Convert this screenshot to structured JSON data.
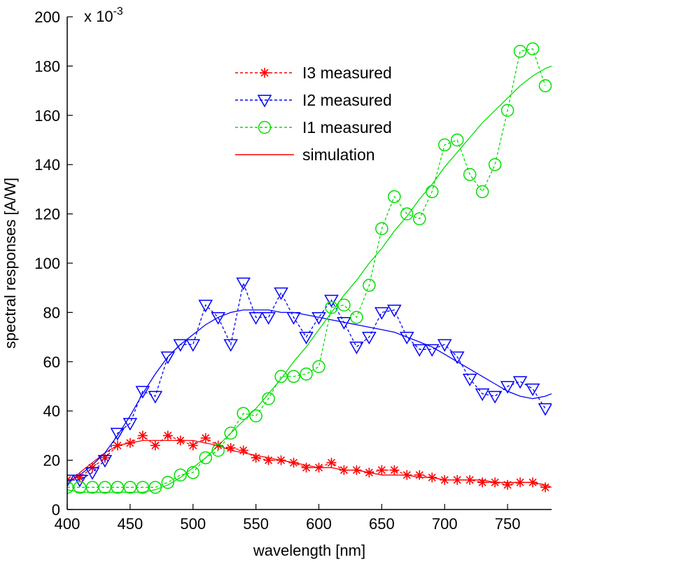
{
  "chart_data": {
    "type": "line",
    "title": "",
    "xlabel": "wavelength [nm]",
    "ylabel": "spectral responses [A/W]",
    "y_multiplier": "x 10",
    "y_multiplier_exp": "-3",
    "xlim": [
      400,
      785
    ],
    "ylim": [
      0,
      200
    ],
    "xticks": [
      400,
      450,
      500,
      550,
      600,
      650,
      700,
      750
    ],
    "yticks": [
      0,
      20,
      40,
      60,
      80,
      100,
      120,
      140,
      160,
      180,
      200
    ],
    "grid": false,
    "legend_position": "top-center",
    "legend": [
      {
        "label": "I3 measured",
        "color": "#ff0000",
        "marker": "star",
        "dash": true
      },
      {
        "label": "I2 measured",
        "color": "#0000ff",
        "marker": "triangle-down",
        "dash": true
      },
      {
        "label": "I1 measured",
        "color": "#00e000",
        "marker": "circle",
        "dash": true
      },
      {
        "label": "simulation",
        "color": "#ff0000",
        "marker": "none",
        "dash": false
      }
    ],
    "series": [
      {
        "name": "I3 measured",
        "color": "#ff0000",
        "marker": "star",
        "x": [
          400,
          410,
          420,
          430,
          440,
          450,
          460,
          470,
          480,
          490,
          500,
          510,
          520,
          530,
          540,
          550,
          560,
          570,
          580,
          590,
          600,
          610,
          620,
          630,
          640,
          650,
          660,
          670,
          680,
          690,
          700,
          710,
          720,
          730,
          740,
          750,
          760,
          770,
          780
        ],
        "y": [
          12,
          13,
          17,
          21,
          26,
          27,
          30,
          26,
          30,
          28,
          26,
          29,
          26,
          25,
          24,
          21,
          20,
          20,
          19,
          17,
          17,
          19,
          16,
          16,
          15,
          16,
          16,
          14,
          14,
          13,
          12,
          12,
          12,
          11,
          11,
          10,
          11,
          11,
          9
        ]
      },
      {
        "name": "I2 measured",
        "color": "#0000ff",
        "marker": "triangle-down",
        "x": [
          400,
          410,
          420,
          430,
          440,
          450,
          460,
          470,
          480,
          490,
          500,
          510,
          520,
          530,
          540,
          550,
          560,
          570,
          580,
          590,
          600,
          610,
          620,
          630,
          640,
          650,
          660,
          670,
          680,
          690,
          700,
          710,
          720,
          730,
          740,
          750,
          760,
          770,
          780
        ],
        "y": [
          12,
          12,
          15,
          20,
          31,
          35,
          48,
          46,
          62,
          67,
          67,
          83,
          78,
          67,
          92,
          78,
          78,
          88,
          78,
          70,
          78,
          85,
          76,
          66,
          70,
          80,
          81,
          70,
          65,
          65,
          67,
          62,
          53,
          47,
          46,
          50,
          52,
          49,
          41
        ]
      },
      {
        "name": "I1 measured",
        "color": "#00e000",
        "marker": "circle",
        "x": [
          400,
          410,
          420,
          430,
          440,
          450,
          460,
          470,
          480,
          490,
          500,
          510,
          520,
          530,
          540,
          550,
          560,
          570,
          580,
          590,
          600,
          610,
          620,
          630,
          640,
          650,
          660,
          670,
          680,
          690,
          700,
          710,
          720,
          730,
          740,
          750,
          760,
          770,
          780
        ],
        "y": [
          9,
          9,
          9,
          9,
          9,
          9,
          9,
          9,
          11,
          14,
          15,
          21,
          24,
          31,
          39,
          38,
          45,
          54,
          54,
          55,
          58,
          82,
          83,
          78,
          91,
          114,
          127,
          120,
          118,
          129,
          148,
          150,
          136,
          129,
          140,
          162,
          186,
          187,
          172
        ]
      },
      {
        "name": "",
        "color": "#ff0000",
        "marker": "none",
        "x": [
          400,
          410,
          420,
          430,
          440,
          450,
          460,
          470,
          480,
          490,
          500,
          510,
          520,
          530,
          540,
          550,
          560,
          570,
          580,
          590,
          600,
          610,
          620,
          630,
          640,
          650,
          660,
          670,
          680,
          690,
          700,
          710,
          720,
          730,
          740,
          750,
          760,
          770,
          780,
          785
        ],
        "y": [
          10,
          15,
          19,
          23,
          26,
          27,
          28,
          28,
          28,
          28,
          28,
          27,
          26,
          24,
          23,
          22,
          21,
          20,
          19,
          18,
          17,
          17,
          16,
          16,
          15,
          14,
          14,
          14,
          13,
          13,
          12,
          12,
          12,
          12,
          11,
          11,
          11,
          11,
          10,
          9
        ]
      },
      {
        "name": "",
        "color": "#0000ff",
        "marker": "none",
        "x": [
          400,
          410,
          420,
          430,
          440,
          450,
          460,
          470,
          480,
          490,
          500,
          510,
          520,
          530,
          540,
          550,
          560,
          570,
          580,
          590,
          600,
          610,
          620,
          630,
          640,
          650,
          660,
          670,
          680,
          690,
          700,
          710,
          720,
          730,
          740,
          750,
          760,
          770,
          780,
          785
        ],
        "y": [
          11,
          14,
          18,
          23,
          30,
          38,
          47,
          55,
          62,
          67,
          71,
          75,
          78,
          80,
          81,
          81,
          81,
          80,
          80,
          79,
          78,
          77,
          76,
          75,
          74,
          73,
          72,
          70,
          68,
          66,
          63,
          60,
          57,
          54,
          51,
          48,
          46,
          45,
          46,
          47
        ]
      },
      {
        "name": "",
        "color": "#00e000",
        "marker": "none",
        "x": [
          400,
          410,
          420,
          430,
          440,
          450,
          460,
          470,
          480,
          490,
          500,
          510,
          520,
          530,
          540,
          550,
          560,
          570,
          580,
          590,
          600,
          610,
          620,
          630,
          640,
          650,
          660,
          670,
          680,
          690,
          700,
          710,
          720,
          730,
          740,
          750,
          760,
          770,
          780,
          785
        ],
        "y": [
          8,
          7,
          7,
          7,
          7,
          7,
          7,
          8,
          10,
          13,
          17,
          21,
          26,
          31,
          36,
          41,
          47,
          53,
          60,
          66,
          73,
          80,
          87,
          93,
          100,
          106,
          113,
          119,
          126,
          132,
          139,
          145,
          151,
          157,
          162,
          167,
          172,
          176,
          179,
          180
        ]
      }
    ]
  }
}
